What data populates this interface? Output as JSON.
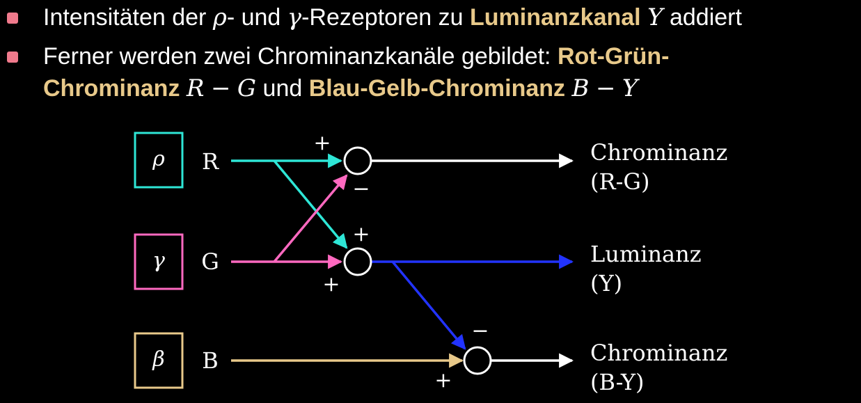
{
  "bullets": [
    {
      "pre": "Intensitäten der ",
      "rho": "ρ",
      "mid1": "- und ",
      "gamma": "γ",
      "mid2": "-Rezeptoren zu ",
      "highlight": "Luminanzkanal",
      "sym": "Y",
      "post": " addiert"
    },
    {
      "line1_pre": "Ferner werden zwei Chrominanzkanäle gebildet: ",
      "line1_highlight": "Rot-Grün-",
      "line2_highlight": "Chrominanz",
      "rg_r": "R",
      "minus": "−",
      "rg_g": "G",
      "und": " und ",
      "by_highlight": "Blau-Gelb-Chrominanz",
      "by_b": "B",
      "by_y": "Y"
    }
  ],
  "diagram": {
    "receptors": [
      {
        "symbol": "ρ",
        "channel": "R",
        "color": "#2ee6d6"
      },
      {
        "symbol": "γ",
        "channel": "G",
        "color": "#ff69c0"
      },
      {
        "symbol": "β",
        "channel": "B",
        "color": "#e8c98a"
      }
    ],
    "signs": {
      "top_plus": "+",
      "top_minus": "−",
      "mid_plus_top": "+",
      "mid_plus_bottom": "+",
      "bottom_minus": "−",
      "bottom_plus": "+"
    },
    "outputs": [
      {
        "line1": "Chrominanz",
        "line2": "(R-G)"
      },
      {
        "line1": "Luminanz",
        "line2": "(Y)"
      },
      {
        "line1": "Chrominanz",
        "line2": "(B-Y)"
      }
    ],
    "colors": {
      "cyan": "#2ee6d6",
      "pink": "#ff69c0",
      "gold": "#e8c98a",
      "blue": "#2233ff",
      "white": "#ffffff"
    }
  }
}
